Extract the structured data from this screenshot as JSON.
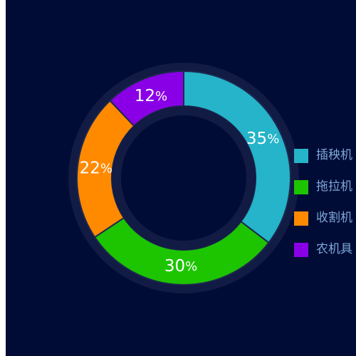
{
  "chart_data": {
    "type": "pie",
    "style": "donut",
    "categories": [
      "插秧机",
      "拖拉机",
      "收割机",
      "农机具"
    ],
    "values": [
      35,
      30,
      22,
      12
    ],
    "labels": [
      "35",
      "30",
      "22",
      "12"
    ],
    "unit": "%",
    "colors": [
      "#25b4c9",
      "#1dc500",
      "#ff8a00",
      "#8a00e6"
    ],
    "legend_position": "right"
  },
  "colors": {
    "background": "#000c36",
    "ring_track": "#121b43",
    "slice_border": "#1c2850",
    "legend_text": "#7ea6d8"
  }
}
